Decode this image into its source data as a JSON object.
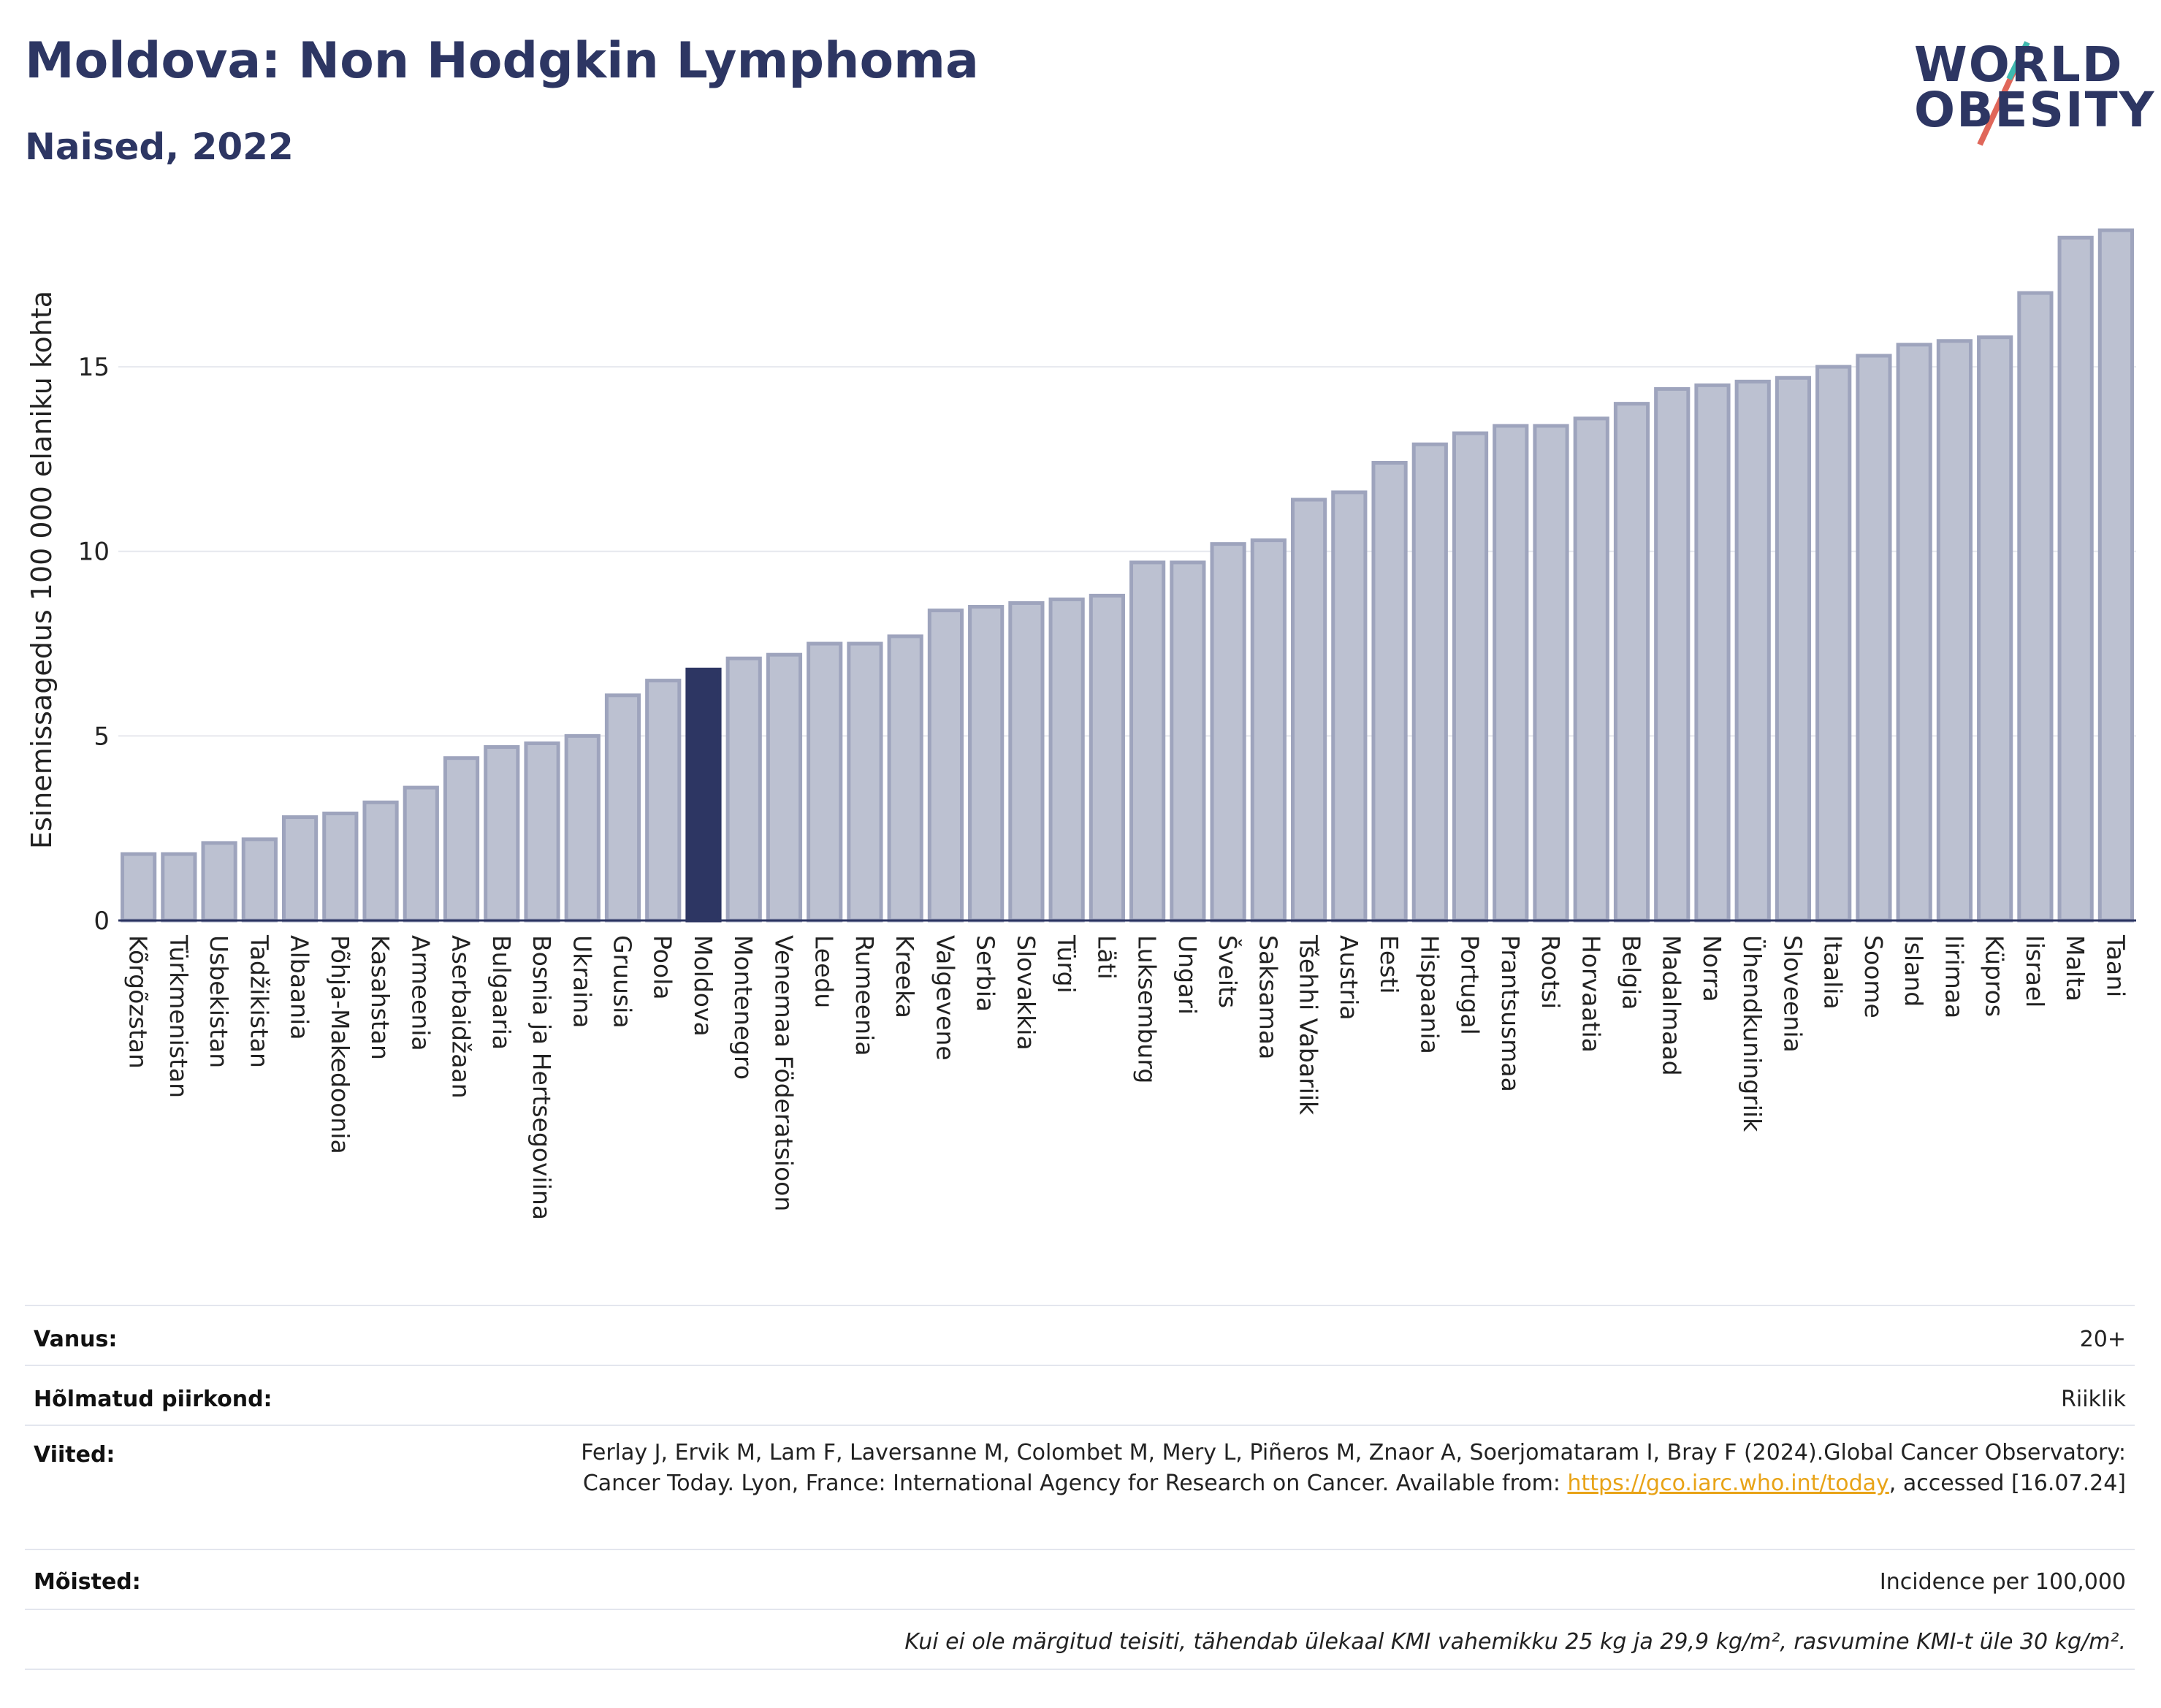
{
  "header": {
    "title": "Moldova: Non Hodgkin Lymphoma",
    "subtitle": "Naised, 2022"
  },
  "logo": {
    "line1": "WORLD",
    "line2": "OBESITY",
    "slash_color": "#e0675a",
    "accent_color": "#3fb9b0"
  },
  "colors": {
    "bar": "#bcc1d1",
    "bar_stroke": "#9ea4bd",
    "highlight": "#2d3663",
    "grid": "#e6e8ee",
    "text": "#2d3663"
  },
  "chart_data": {
    "type": "bar",
    "title": "",
    "ylabel": "Esinemissagedus 100 000 elaniku kohta",
    "xlabel": "",
    "ylim": [
      0,
      19
    ],
    "yticks": [
      0,
      5,
      10,
      15
    ],
    "highlight": "Moldova",
    "categories": [
      "Kõrgõzstan",
      "Türkmenistan",
      "Usbekistan",
      "Tadžikistan",
      "Albaania",
      "Põhja-Makedoonia",
      "Kasahstan",
      "Armeenia",
      "Aserbaidžaan",
      "Bulgaaria",
      "Bosnia ja Hertsegoviina",
      "Ukraina",
      "Gruusia",
      "Poola",
      "Moldova",
      "Montenegro",
      "Venemaa Föderatsioon",
      "Leedu",
      "Rumeenia",
      "Kreeka",
      "Valgevene",
      "Serbia",
      "Slovakkia",
      "Türgi",
      "Läti",
      "Luksemburg",
      "Ungari",
      "Šveits",
      "Saksamaa",
      "Tšehhi Vabariik",
      "Austria",
      "Eesti",
      "Hispaania",
      "Portugal",
      "Prantsusmaa",
      "Rootsi",
      "Horvaatia",
      "Belgia",
      "Madalmaad",
      "Norra",
      "Ühendkuningriik",
      "Sloveenia",
      "Itaalia",
      "Soome",
      "Island",
      "Iirimaa",
      "Küpros",
      "Iisrael",
      "Malta",
      "Taani"
    ],
    "values": [
      1.8,
      1.8,
      2.1,
      2.2,
      2.8,
      2.9,
      3.2,
      3.6,
      4.4,
      4.7,
      4.8,
      5.0,
      6.1,
      6.5,
      6.8,
      7.1,
      7.2,
      7.5,
      7.5,
      7.7,
      8.4,
      8.5,
      8.6,
      8.7,
      8.8,
      9.7,
      9.7,
      10.2,
      10.3,
      11.4,
      11.6,
      12.4,
      12.9,
      13.2,
      13.4,
      13.4,
      13.6,
      14.0,
      14.4,
      14.5,
      14.6,
      14.7,
      15.0,
      15.3,
      15.6,
      15.7,
      15.8,
      17.0,
      18.5,
      18.7
    ]
  },
  "meta": {
    "age_label": "Vanus:",
    "age_value": "20+",
    "region_label": "Hõlmatud piirkond:",
    "region_value": "Riiklik",
    "refs_label": "Viited:",
    "refs_text_1": "Ferlay J, Ervik M, Lam F, Laversanne M, Colombet M, Mery L, Piñeros M, Znaor A, Soerjomataram I, Bray F (2024).Global Cancer Observatory: Cancer Today. Lyon, France: International Agency for Research on Cancer. Available from: ",
    "refs_link": "https://gco.iarc.who.int/today",
    "refs_text_2": ", accessed [16.07.24]",
    "defs_label": "Mõisted:",
    "defs_value": "Incidence per 100,000",
    "note": "Kui ei ole märgitud teisiti, tähendab ülekaal KMI vahemikku 25 kg ja 29,9 kg/m², rasvumine KMI-t üle 30 kg/m²."
  }
}
